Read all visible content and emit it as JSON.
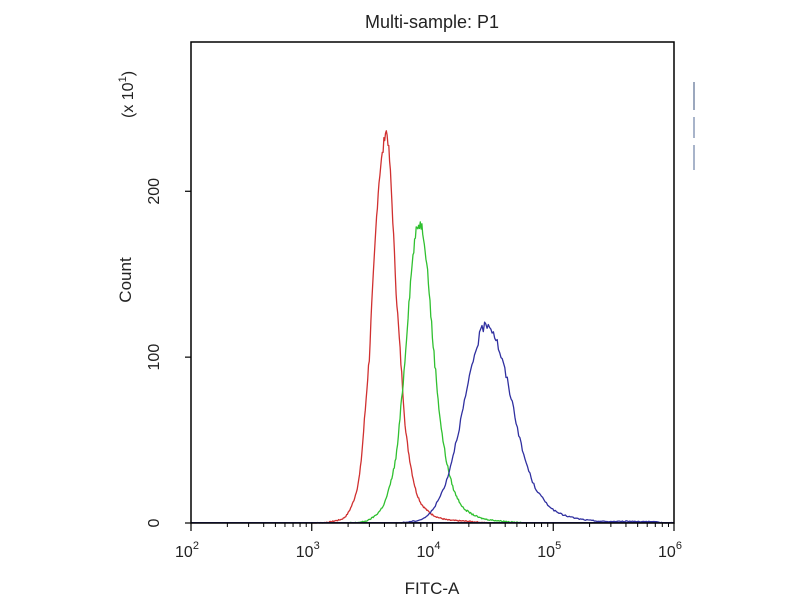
{
  "chart_data": {
    "type": "line",
    "title": "Multi-sample: P1",
    "xlabel": "FITC-A",
    "ylabel": "Count",
    "y_multiplier": {
      "prefix": "(x 10",
      "exponent": "1",
      "suffix": ")"
    },
    "x_scale": "log",
    "xlim": [
      100,
      1000000
    ],
    "ylim": [
      0,
      290
    ],
    "x_ticks": [
      {
        "base": "10",
        "exp": "2",
        "value": 100
      },
      {
        "base": "10",
        "exp": "3",
        "value": 1000
      },
      {
        "base": "10",
        "exp": "4",
        "value": 10000
      },
      {
        "base": "10",
        "exp": "5",
        "value": 100000
      },
      {
        "base": "10",
        "exp": "6",
        "value": 1000000
      }
    ],
    "y_ticks": [
      {
        "label": "0",
        "value": 0
      },
      {
        "label": "100",
        "value": 100
      },
      {
        "label": "200",
        "value": 200
      }
    ],
    "grid": false,
    "series": [
      {
        "color": "#d03030",
        "x": [
          1000,
          1500,
          2000,
          2500,
          3000,
          3300,
          3600,
          3900,
          4100,
          4300,
          4600,
          5000,
          5500,
          6000,
          7000,
          8000,
          10000,
          13000,
          20000,
          30000
        ],
        "y": [
          0,
          1,
          6,
          30,
          100,
          160,
          205,
          225,
          236,
          228,
          195,
          140,
          95,
          55,
          25,
          12,
          5,
          2,
          1,
          0
        ]
      },
      {
        "color": "#30c030",
        "x": [
          2000,
          3000,
          4000,
          5000,
          5800,
          6500,
          7200,
          7800,
          8300,
          9000,
          10000,
          11500,
          13000,
          15000,
          18000,
          25000,
          40000,
          60000
        ],
        "y": [
          0,
          2,
          12,
          40,
          90,
          140,
          172,
          180,
          176,
          155,
          112,
          65,
          38,
          20,
          9,
          3,
          1,
          0
        ]
      },
      {
        "color": "#3030a0",
        "x": [
          5000,
          8000,
          10000,
          13000,
          16000,
          20000,
          24000,
          28000,
          32000,
          37000,
          45000,
          55000,
          70000,
          100000,
          150000,
          250000,
          500000,
          1000000
        ],
        "y": [
          0,
          2,
          8,
          25,
          52,
          85,
          110,
          120,
          115,
          100,
          75,
          45,
          22,
          8,
          3,
          1,
          1,
          0
        ]
      }
    ]
  }
}
